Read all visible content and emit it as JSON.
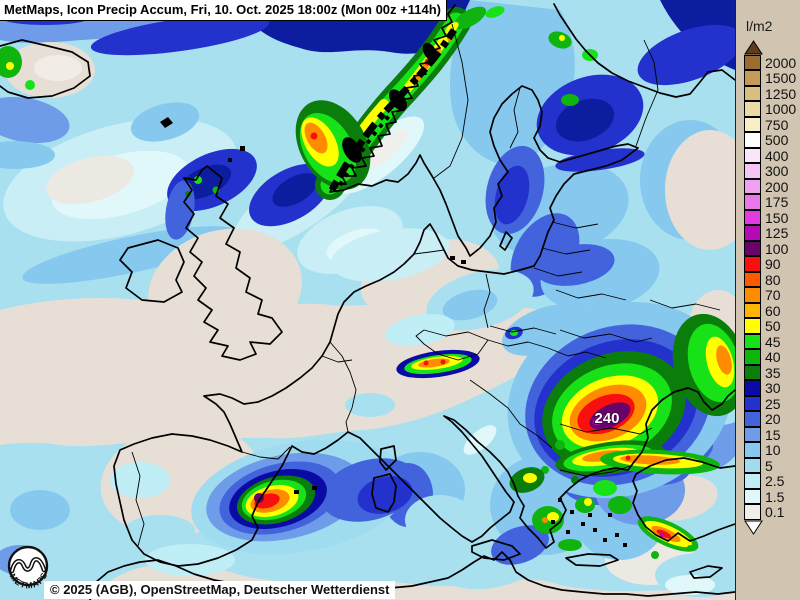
{
  "header": {
    "title": "MetMaps, Icon Precip Accum, Fri, 10. Oct. 2025 18:00z (Mon 00z +114h)"
  },
  "legend": {
    "unit": "l/m2",
    "panel_bg": "#d1c5b2",
    "arrow_top_color": "#5f3d1c",
    "arrow_bottom_color": "#ffffff",
    "levels": [
      {
        "value": "2000",
        "color": "#9c6b2e"
      },
      {
        "value": "1500",
        "color": "#c49a57"
      },
      {
        "value": "1250",
        "color": "#dabd80"
      },
      {
        "value": "1000",
        "color": "#ebdaa1"
      },
      {
        "value": "750",
        "color": "#f6efc7"
      },
      {
        "value": "500",
        "color": "#ffffff"
      },
      {
        "value": "400",
        "color": "#fae6fa"
      },
      {
        "value": "300",
        "color": "#f5c6f5"
      },
      {
        "value": "200",
        "color": "#efa2ef"
      },
      {
        "value": "175",
        "color": "#e878e8"
      },
      {
        "value": "150",
        "color": "#e03ce0"
      },
      {
        "value": "125",
        "color": "#b509b5"
      },
      {
        "value": "100",
        "color": "#690369"
      },
      {
        "value": "90",
        "color": "#fa0f0f"
      },
      {
        "value": "80",
        "color": "#ff5a00"
      },
      {
        "value": "70",
        "color": "#ff8c00"
      },
      {
        "value": "60",
        "color": "#ffb400"
      },
      {
        "value": "50",
        "color": "#ffff00"
      },
      {
        "value": "45",
        "color": "#17e217"
      },
      {
        "value": "40",
        "color": "#0fb40f"
      },
      {
        "value": "35",
        "color": "#0a7d0a"
      },
      {
        "value": "30",
        "color": "#0a0aa5"
      },
      {
        "value": "25",
        "color": "#2331cd"
      },
      {
        "value": "20",
        "color": "#4263dc"
      },
      {
        "value": "15",
        "color": "#6e9ce8"
      },
      {
        "value": "10",
        "color": "#86c8ee"
      },
      {
        "value": "5",
        "color": "#a0dcf0"
      },
      {
        "value": "2.5",
        "color": "#bfeef6"
      },
      {
        "value": "1.5",
        "color": "#e1f8fb"
      },
      {
        "value": "0.1",
        "color": "#efefec"
      }
    ]
  },
  "map": {
    "max_label": "240"
  },
  "footer": {
    "copyright": "© 2025 (AGB), OpenStreetMap, Deutscher Wetterdienst"
  },
  "logo": {
    "text": "METMAPS"
  }
}
